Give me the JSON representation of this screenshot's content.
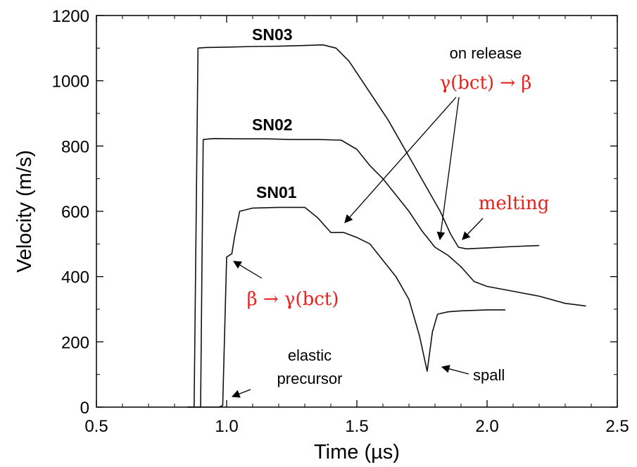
{
  "chart_data": {
    "type": "line",
    "title": "",
    "xlabel": "Time (µs)",
    "ylabel": "Velocity (m/s)",
    "xlim": [
      0.5,
      2.5
    ],
    "ylim": [
      0,
      1200
    ],
    "xticks": [
      "0.5",
      "1.0",
      "1.5",
      "2.0",
      "2.5"
    ],
    "yticks": [
      "0",
      "200",
      "400",
      "600",
      "800",
      "1000",
      "1200"
    ],
    "grid": false,
    "series": [
      {
        "name": "SN03",
        "points": [
          [
            0.85,
            0
          ],
          [
            0.875,
            0
          ],
          [
            0.89,
            1100
          ],
          [
            0.92,
            1102
          ],
          [
            1.0,
            1103
          ],
          [
            1.1,
            1105
          ],
          [
            1.2,
            1106
          ],
          [
            1.3,
            1108
          ],
          [
            1.37,
            1110
          ],
          [
            1.42,
            1100
          ],
          [
            1.47,
            1060
          ],
          [
            1.52,
            1000
          ],
          [
            1.57,
            940
          ],
          [
            1.62,
            880
          ],
          [
            1.67,
            810
          ],
          [
            1.72,
            740
          ],
          [
            1.77,
            670
          ],
          [
            1.82,
            600
          ],
          [
            1.86,
            530
          ],
          [
            1.89,
            490
          ],
          [
            1.92,
            485
          ],
          [
            2.0,
            488
          ],
          [
            2.1,
            492
          ],
          [
            2.2,
            495
          ]
        ]
      },
      {
        "name": "SN02",
        "points": [
          [
            0.85,
            0
          ],
          [
            0.9,
            0
          ],
          [
            0.91,
            820
          ],
          [
            0.95,
            823
          ],
          [
            1.05,
            822
          ],
          [
            1.15,
            822
          ],
          [
            1.25,
            820
          ],
          [
            1.35,
            820
          ],
          [
            1.44,
            818
          ],
          [
            1.5,
            790
          ],
          [
            1.55,
            740
          ],
          [
            1.6,
            700
          ],
          [
            1.65,
            650
          ],
          [
            1.7,
            600
          ],
          [
            1.75,
            540
          ],
          [
            1.8,
            490
          ],
          [
            1.85,
            465
          ],
          [
            1.9,
            430
          ],
          [
            1.95,
            385
          ],
          [
            2.0,
            370
          ],
          [
            2.1,
            355
          ],
          [
            2.2,
            340
          ],
          [
            2.3,
            318
          ],
          [
            2.38,
            310
          ]
        ]
      },
      {
        "name": "SN01",
        "points": [
          [
            0.85,
            0
          ],
          [
            0.97,
            0
          ],
          [
            0.985,
            5
          ],
          [
            1.0,
            460
          ],
          [
            1.02,
            470
          ],
          [
            1.03,
            520
          ],
          [
            1.05,
            600
          ],
          [
            1.1,
            610
          ],
          [
            1.2,
            612
          ],
          [
            1.3,
            612
          ],
          [
            1.35,
            580
          ],
          [
            1.4,
            535
          ],
          [
            1.45,
            535
          ],
          [
            1.5,
            520
          ],
          [
            1.55,
            500
          ],
          [
            1.6,
            450
          ],
          [
            1.65,
            400
          ],
          [
            1.7,
            330
          ],
          [
            1.74,
            220
          ],
          [
            1.77,
            110
          ],
          [
            1.79,
            230
          ],
          [
            1.81,
            285
          ],
          [
            1.85,
            292
          ],
          [
            1.9,
            295
          ],
          [
            2.0,
            298
          ],
          [
            2.07,
            298
          ]
        ]
      }
    ],
    "annotations": [
      {
        "text": "on release",
        "color": "#000000"
      },
      {
        "text": "γ(bct) → β",
        "color": "#e8211d"
      },
      {
        "text": "melting",
        "color": "#e8211d"
      },
      {
        "text": "β → γ(bct)",
        "color": "#e8211d"
      },
      {
        "text": "elastic",
        "color": "#000000"
      },
      {
        "text": "precursor",
        "color": "#000000"
      },
      {
        "text": "spall",
        "color": "#000000"
      }
    ]
  }
}
